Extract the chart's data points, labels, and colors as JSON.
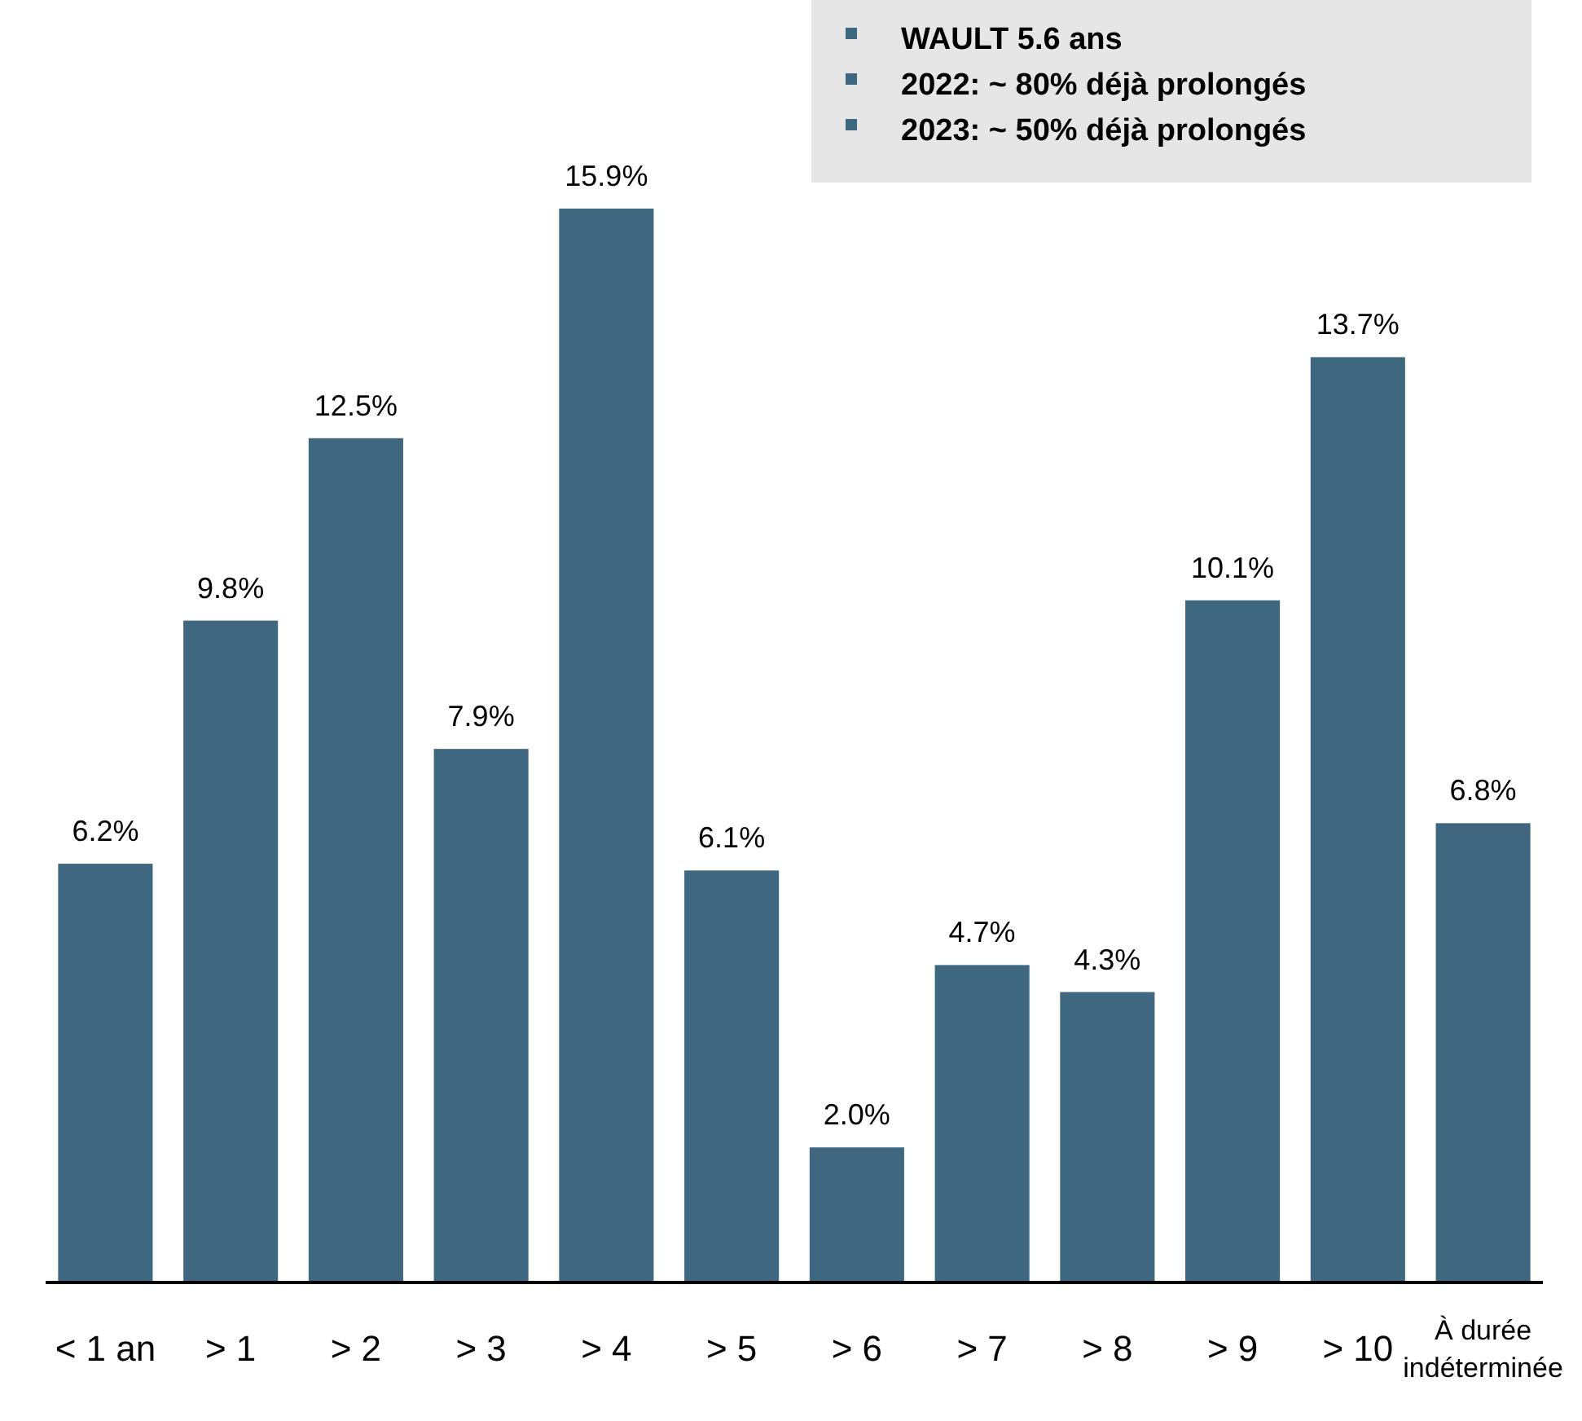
{
  "chart_data": {
    "type": "bar",
    "categories": [
      "< 1 an",
      "> 1",
      "> 2",
      "> 3",
      "> 4",
      "> 5",
      "> 6",
      "> 7",
      "> 8",
      "> 9",
      "> 10",
      "À durée indéterminée"
    ],
    "values": [
      6.2,
      9.8,
      12.5,
      7.9,
      15.9,
      6.1,
      2.0,
      4.7,
      4.3,
      10.1,
      13.7,
      6.8
    ],
    "value_labels": [
      "6.2%",
      "9.8%",
      "12.5%",
      "7.9%",
      "15.9%",
      "6.1%",
      "2.0%",
      "4.7%",
      "4.3%",
      "10.1%",
      "13.7%",
      "6.8%"
    ],
    "color": "#3f6880",
    "annotations": [
      "WAULT 5.6 ans",
      "2022: ~ 80% déjà prolongés",
      "2023: ~ 50% déjà prolongés"
    ],
    "grid": false
  }
}
